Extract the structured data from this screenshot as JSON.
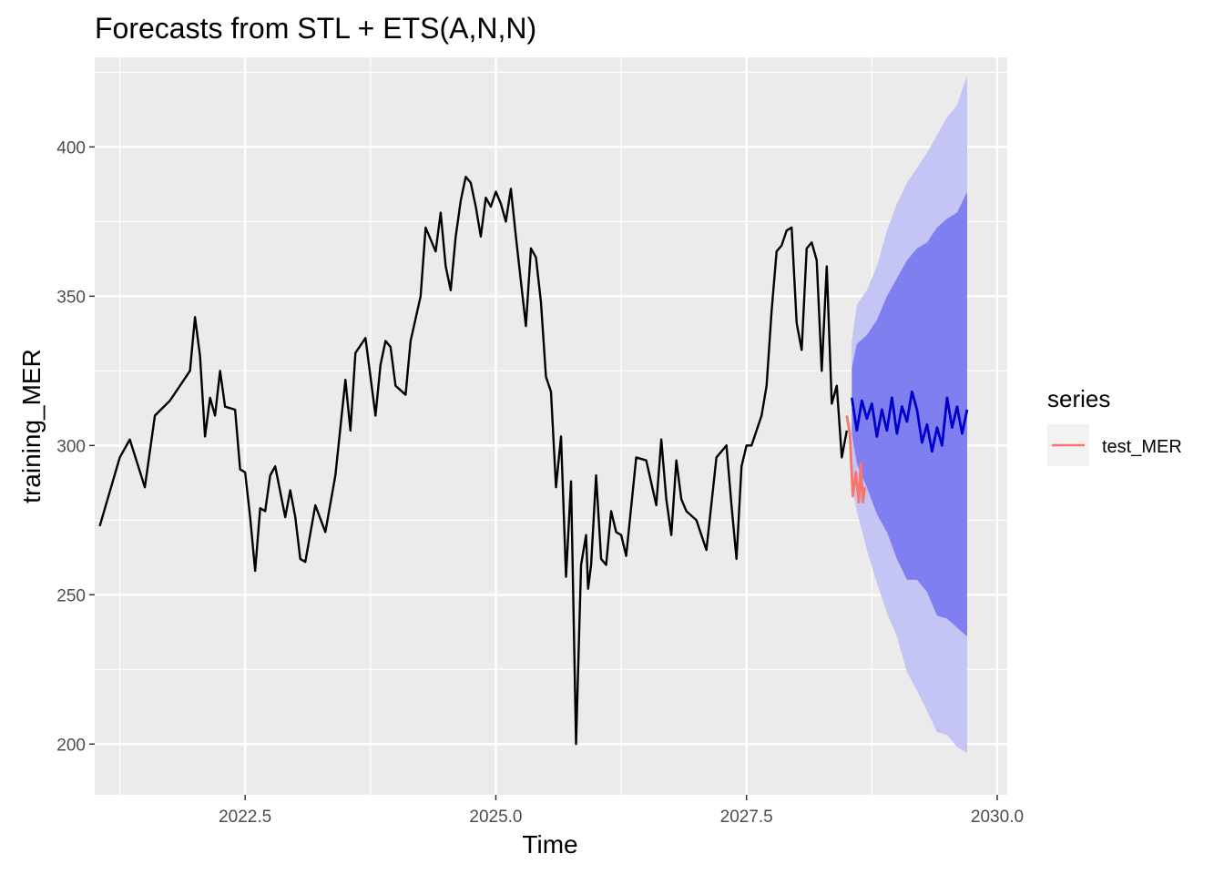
{
  "chart_data": {
    "type": "line",
    "title": "Forecasts from STL +  ETS(A,N,N)",
    "xlabel": "Time",
    "ylabel": "training_MER",
    "xlim": [
      2021.0,
      2030.1
    ],
    "ylim": [
      183,
      430
    ],
    "x_ticks": [
      2022.5,
      2025.0,
      2027.5,
      2030.0
    ],
    "x_tick_labels": [
      "2022.5",
      "2025.0",
      "2027.5",
      "2030.0"
    ],
    "y_ticks": [
      200,
      250,
      300,
      350,
      400
    ],
    "y_tick_labels": [
      "200",
      "250",
      "300",
      "350",
      "400"
    ],
    "grid": true,
    "legend": {
      "title": "series",
      "position": "right",
      "entries": [
        {
          "label": "test_MER",
          "color": "#F8766D"
        }
      ]
    },
    "colors": {
      "panel": "#EBEBEB",
      "grid": "#FFFFFF",
      "training": "#000000",
      "forecast": "#0000CC",
      "band80": "#7F7FEF",
      "band95": "#C4C4F5",
      "test": "#F8766D"
    },
    "series": [
      {
        "key": "training",
        "x": [
          2021.05,
          2021.25,
          2021.35,
          2021.5,
          2021.6,
          2021.75,
          2021.95,
          2022.0,
          2022.05,
          2022.1,
          2022.15,
          2022.2,
          2022.25,
          2022.3,
          2022.4,
          2022.45,
          2022.5,
          2022.55,
          2022.6,
          2022.65,
          2022.7,
          2022.75,
          2022.8,
          2022.9,
          2022.95,
          2023.0,
          2023.05,
          2023.1,
          2023.2,
          2023.3,
          2023.4,
          2023.5,
          2023.55,
          2023.6,
          2023.7,
          2023.8,
          2023.85,
          2023.9,
          2023.95,
          2024.0,
          2024.1,
          2024.15,
          2024.25,
          2024.3,
          2024.4,
          2024.45,
          2024.5,
          2024.55,
          2024.6,
          2024.65,
          2024.7,
          2024.75,
          2024.8,
          2024.85,
          2024.9,
          2024.95,
          2025.0,
          2025.05,
          2025.1,
          2025.15,
          2025.2,
          2025.3,
          2025.35,
          2025.4,
          2025.45,
          2025.5,
          2025.55,
          2025.6,
          2025.65,
          2025.7,
          2025.75,
          2025.8,
          2025.85,
          2025.9,
          2025.92,
          2025.95,
          2026.0,
          2026.05,
          2026.1,
          2026.15,
          2026.2,
          2026.25,
          2026.3,
          2026.4,
          2026.5,
          2026.6,
          2026.65,
          2026.7,
          2026.75,
          2026.8,
          2026.85,
          2026.9,
          2027.0,
          2027.1,
          2027.2,
          2027.3,
          2027.35,
          2027.4,
          2027.45,
          2027.5,
          2027.55,
          2027.6,
          2027.65,
          2027.7,
          2027.75,
          2027.8,
          2027.85,
          2027.9,
          2027.95,
          2028.0,
          2028.05,
          2028.1,
          2028.15,
          2028.2,
          2028.25,
          2028.3,
          2028.35,
          2028.4,
          2028.45,
          2028.5
        ],
        "y": [
          273,
          296,
          302,
          286,
          310,
          315,
          325,
          343,
          330,
          303,
          316,
          310,
          325,
          313,
          312,
          292,
          291,
          276,
          258,
          279,
          278,
          290,
          293,
          276,
          285,
          276,
          262,
          261,
          280,
          271,
          290,
          322,
          305,
          331,
          336,
          310,
          327,
          335,
          333,
          320,
          317,
          335,
          350,
          373,
          365,
          378,
          360,
          352,
          370,
          382,
          390,
          388,
          380,
          370,
          383,
          380,
          385,
          381,
          375,
          386,
          370,
          340,
          366,
          363,
          348,
          323,
          318,
          286,
          303,
          256,
          288,
          200,
          260,
          270,
          252,
          260,
          290,
          262,
          260,
          278,
          271,
          270,
          263,
          296,
          295,
          280,
          302,
          282,
          270,
          295,
          282,
          278,
          275,
          265,
          296,
          300,
          280,
          262,
          293,
          300,
          300,
          305,
          310,
          320,
          345,
          365,
          367,
          372,
          373,
          341,
          332,
          366,
          368,
          362,
          325,
          360,
          314,
          320,
          296,
          305
        ]
      },
      {
        "key": "forecast",
        "x": [
          2028.55,
          2028.6,
          2028.65,
          2028.7,
          2028.75,
          2028.8,
          2028.85,
          2028.9,
          2028.95,
          2029.0,
          2029.05,
          2029.1,
          2029.15,
          2029.2,
          2029.25,
          2029.3,
          2029.35,
          2029.4,
          2029.45,
          2029.5,
          2029.55,
          2029.6,
          2029.65,
          2029.7
        ],
        "y": [
          316,
          305,
          315,
          309,
          314,
          303,
          312,
          305,
          316,
          304,
          313,
          308,
          318,
          312,
          301,
          307,
          298,
          306,
          300,
          316,
          306,
          313,
          304,
          312
        ]
      },
      {
        "key": "test",
        "name": "test_MER",
        "x": [
          2028.5,
          2028.53,
          2028.56,
          2028.59,
          2028.62,
          2028.64,
          2028.66,
          2028.68
        ],
        "y": [
          310,
          304,
          283,
          291,
          281,
          294,
          281,
          286
        ]
      }
    ],
    "bands": {
      "x": [
        2028.55,
        2028.6,
        2028.7,
        2028.8,
        2028.9,
        2029.0,
        2029.1,
        2029.2,
        2029.3,
        2029.4,
        2029.5,
        2029.6,
        2029.7
      ],
      "upper95": [
        335,
        347,
        352,
        360,
        372,
        381,
        388,
        393,
        398,
        404,
        410,
        414,
        424
      ],
      "upper80": [
        326,
        334,
        337,
        342,
        350,
        356,
        362,
        366,
        368,
        373,
        376,
        378,
        385
      ],
      "lower80": [
        304,
        294,
        286,
        277,
        271,
        262,
        255,
        255,
        251,
        243,
        242,
        239,
        236
      ],
      "lower95": [
        286,
        278,
        265,
        254,
        244,
        236,
        224,
        218,
        211,
        204,
        203,
        199,
        197
      ]
    }
  }
}
